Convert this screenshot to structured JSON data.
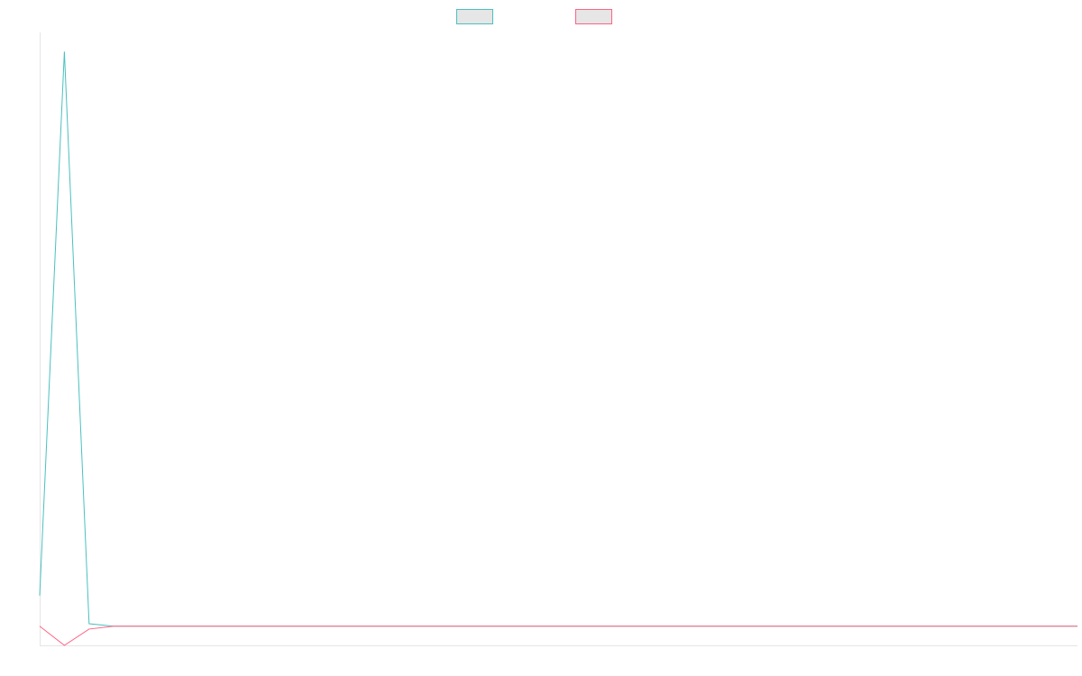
{
  "chart_data": {
    "type": "line",
    "title": "",
    "xlabel": "",
    "ylabel": "",
    "grid": false,
    "legend_position": "top-center",
    "x": [
      0,
      1,
      2,
      3,
      4,
      5,
      6,
      7,
      8,
      9,
      10,
      11,
      12,
      13,
      14,
      15,
      16,
      17,
      18,
      19,
      20,
      21,
      22,
      23,
      24,
      25,
      26,
      27,
      28,
      29,
      30,
      31,
      32,
      33,
      34,
      35,
      36,
      37,
      38,
      39,
      40,
      41,
      42
    ],
    "xlim": [
      0,
      42
    ],
    "ylim": [
      -1,
      31
    ],
    "series": [
      {
        "color": "#4bc0c0",
        "values": [
          1.6,
          30,
          0.13,
          0,
          0,
          0,
          0,
          0,
          0,
          0,
          0,
          0,
          0,
          0,
          0,
          0,
          0,
          0,
          0,
          0,
          0,
          0,
          0,
          0,
          0,
          0,
          0,
          0,
          0,
          0,
          0,
          0,
          0,
          0,
          0,
          0,
          0,
          0,
          0,
          0,
          0,
          0,
          0
        ]
      },
      {
        "color": "#ff6384",
        "values": [
          0,
          -1,
          -0.15,
          0,
          0,
          0,
          0,
          0,
          0,
          0,
          0,
          0,
          0,
          0,
          0,
          0,
          0,
          0,
          0,
          0,
          0,
          0,
          0,
          0,
          0,
          0,
          0,
          0,
          0,
          0,
          0,
          0,
          0,
          0,
          0,
          0,
          0,
          0,
          0,
          0,
          0,
          0,
          0
        ]
      }
    ]
  }
}
